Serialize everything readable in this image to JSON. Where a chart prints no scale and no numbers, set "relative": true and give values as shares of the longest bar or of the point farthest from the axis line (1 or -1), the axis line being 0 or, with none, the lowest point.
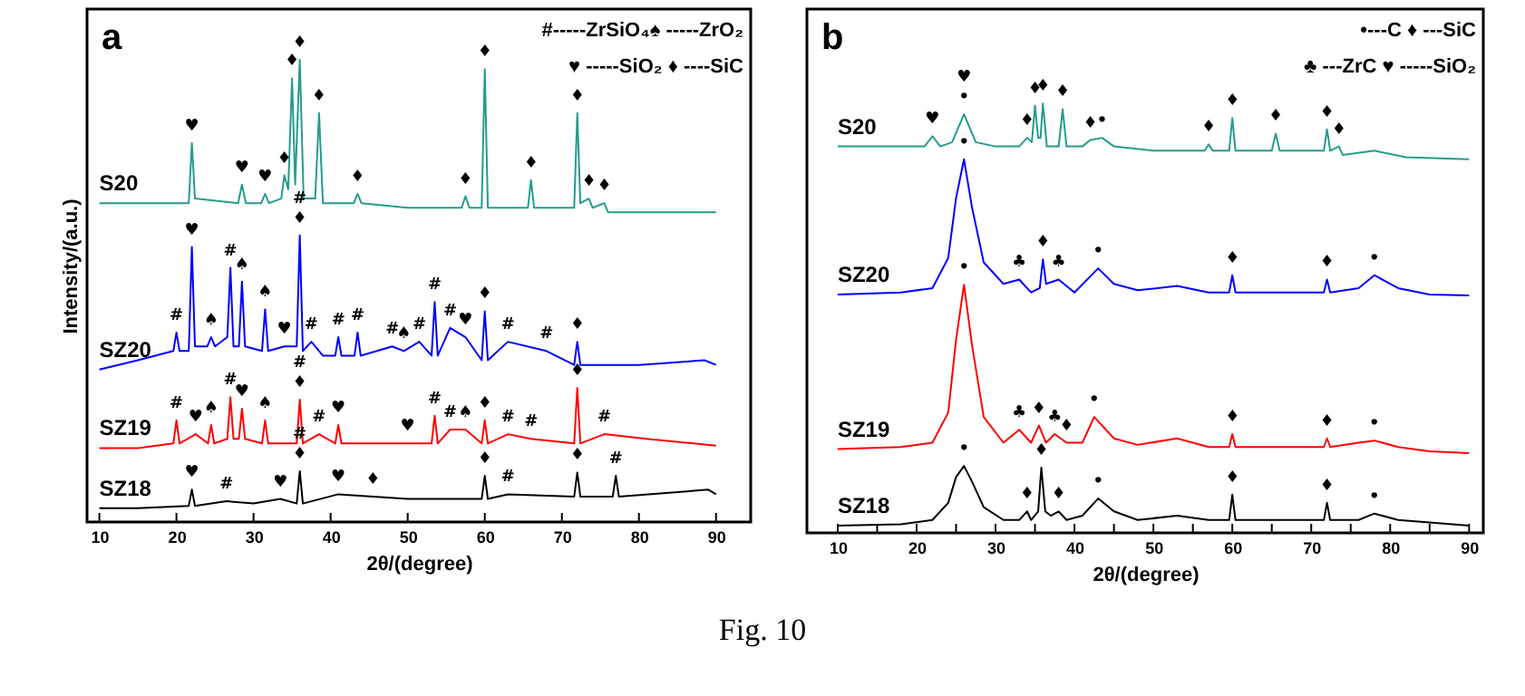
{
  "chart_data": [
    {
      "type": "line",
      "title": "a",
      "xlabel": "2θ/(degree)",
      "ylabel": "Intensity/(a.u.)",
      "relative": true,
      "xlim": [
        8.4,
        94.5
      ],
      "xticks": [
        10,
        20,
        30,
        40,
        50,
        60,
        70,
        80,
        90
      ],
      "series": [
        {
          "name": "S20",
          "color": "#259b8e",
          "x": [
            10,
            15,
            20,
            21.6,
            22,
            22.4,
            28,
            28.5,
            29,
            31,
            31.5,
            32,
            33.6,
            34,
            34.5,
            35,
            35.4,
            36,
            36.5,
            38,
            38.5,
            39,
            43,
            43.5,
            44,
            50,
            57,
            57.5,
            58,
            59.6,
            60,
            60.4,
            65.6,
            66,
            66.4,
            71.6,
            72,
            72.4,
            73.5,
            74,
            75.5,
            76,
            80,
            85,
            90
          ],
          "values": [
            0.69,
            0.69,
            0.69,
            0.69,
            0.82,
            0.7,
            0.69,
            0.73,
            0.69,
            0.69,
            0.71,
            0.69,
            0.7,
            0.75,
            0.72,
            0.96,
            0.73,
            1.0,
            0.7,
            0.7,
            0.885,
            0.69,
            0.69,
            0.71,
            0.69,
            0.68,
            0.68,
            0.705,
            0.68,
            0.68,
            0.98,
            0.68,
            0.68,
            0.74,
            0.68,
            0.68,
            0.885,
            0.69,
            0.7,
            0.68,
            0.69,
            0.67,
            0.67,
            0.67,
            0.67
          ]
        },
        {
          "name": "SZ20",
          "color": "#0000ff",
          "x": [
            10,
            15,
            19.6,
            20,
            20.4,
            21.6,
            22,
            22.4,
            24,
            24.5,
            25,
            26.6,
            27,
            27.4,
            28.1,
            28.5,
            28.9,
            31.1,
            31.5,
            31.9,
            34,
            35.6,
            36,
            36.4,
            37.5,
            39,
            40.6,
            41,
            41.4,
            43.1,
            43.5,
            43.9,
            48,
            49.5,
            51.5,
            53.1,
            53.5,
            53.9,
            55.5,
            57.5,
            59.6,
            60,
            60.4,
            63,
            68,
            71.6,
            72,
            72.4,
            80,
            88.5,
            90
          ],
          "values": [
            0.33,
            0.35,
            0.37,
            0.41,
            0.37,
            0.37,
            0.595,
            0.38,
            0.38,
            0.4,
            0.38,
            0.4,
            0.55,
            0.38,
            0.38,
            0.52,
            0.38,
            0.37,
            0.46,
            0.37,
            0.38,
            0.38,
            0.62,
            0.37,
            0.39,
            0.36,
            0.36,
            0.4,
            0.36,
            0.36,
            0.41,
            0.36,
            0.38,
            0.37,
            0.39,
            0.36,
            0.476,
            0.36,
            0.42,
            0.4,
            0.35,
            0.456,
            0.35,
            0.39,
            0.37,
            0.34,
            0.39,
            0.34,
            0.34,
            0.35,
            0.34
          ]
        },
        {
          "name": "SZ19",
          "color": "#ff0000",
          "x": [
            10,
            15,
            19.6,
            20,
            20.4,
            22.5,
            24.1,
            24.5,
            24.9,
            26.6,
            27,
            27.4,
            28.1,
            28.5,
            28.9,
            31.1,
            31.5,
            31.9,
            35.6,
            36,
            36.4,
            38.5,
            40.6,
            41,
            41.4,
            50,
            53.1,
            53.5,
            53.9,
            55.5,
            57.5,
            59.6,
            60,
            60.4,
            63,
            66,
            71.6,
            72,
            72.4,
            75.5,
            81,
            90
          ],
          "values": [
            0.16,
            0.16,
            0.17,
            0.22,
            0.17,
            0.19,
            0.17,
            0.21,
            0.17,
            0.18,
            0.27,
            0.18,
            0.18,
            0.245,
            0.18,
            0.17,
            0.22,
            0.17,
            0.17,
            0.265,
            0.17,
            0.19,
            0.17,
            0.21,
            0.17,
            0.17,
            0.17,
            0.23,
            0.17,
            0.2,
            0.2,
            0.17,
            0.22,
            0.17,
            0.19,
            0.18,
            0.17,
            0.29,
            0.17,
            0.19,
            0.18,
            0.165
          ]
        },
        {
          "name": "SZ18",
          "color": "#000000",
          "x": [
            10,
            15,
            21.6,
            22,
            22.4,
            26.5,
            30,
            33.5,
            35.6,
            36,
            36.4,
            41,
            45.5,
            50,
            59.6,
            60,
            60.4,
            63,
            71.6,
            72,
            72.4,
            76.6,
            77,
            77.4,
            89,
            90
          ],
          "values": [
            0.03,
            0.03,
            0.035,
            0.07,
            0.035,
            0.045,
            0.04,
            0.05,
            0.04,
            0.11,
            0.04,
            0.06,
            0.055,
            0.05,
            0.05,
            0.1,
            0.05,
            0.06,
            0.055,
            0.107,
            0.055,
            0.055,
            0.1,
            0.055,
            0.07,
            0.06
          ]
        }
      ],
      "annotations": [
        "#-----ZrSiO₄♠ -----ZrO₂",
        "♥ -----SiO₂  ♦ ----SiC",
        {
          "text": "♥",
          "x": 22,
          "y": 0.82
        },
        {
          "text": "♥",
          "x": 28.5,
          "y": 0.73
        },
        {
          "text": "♥",
          "x": 31.5,
          "y": 0.71
        },
        {
          "text": "♦",
          "x": 34,
          "y": 0.75
        },
        {
          "text": "♦",
          "x": 35,
          "y": 0.96
        },
        {
          "text": "♦",
          "x": 36,
          "y": 1.0
        },
        {
          "text": "♦",
          "x": 38.5,
          "y": 0.885
        },
        {
          "text": "♦",
          "x": 43.5,
          "y": 0.71
        },
        {
          "text": "♦",
          "x": 57.5,
          "y": 0.705
        },
        {
          "text": "♦",
          "x": 60,
          "y": 0.98
        },
        {
          "text": "♦",
          "x": 66,
          "y": 0.74
        },
        {
          "text": "♦",
          "x": 72,
          "y": 0.885
        },
        {
          "text": "♦",
          "x": 73.5,
          "y": 0.7
        },
        {
          "text": "♦",
          "x": 75.5,
          "y": 0.69
        },
        {
          "text": "#",
          "x": 20,
          "y": 0.41
        },
        {
          "text": "♥",
          "x": 22,
          "y": 0.595
        },
        {
          "text": "♠",
          "x": 24.5,
          "y": 0.4
        },
        {
          "text": "#",
          "x": 27,
          "y": 0.55
        },
        {
          "text": "♠",
          "x": 28.5,
          "y": 0.52
        },
        {
          "text": "♠",
          "x": 31.5,
          "y": 0.46
        },
        {
          "text": "♥",
          "x": 34,
          "y": 0.38
        },
        {
          "text": "♦",
          "x": 36,
          "y": 0.62
        },
        {
          "text": "#",
          "x": 36,
          "y": 0.62
        },
        {
          "text": "#",
          "x": 37.5,
          "y": 0.39
        },
        {
          "text": "#",
          "x": 41,
          "y": 0.4
        },
        {
          "text": "#",
          "x": 43.5,
          "y": 0.41
        },
        {
          "text": "#",
          "x": 48,
          "y": 0.38
        },
        {
          "text": "♠",
          "x": 49.5,
          "y": 0.37
        },
        {
          "text": "#",
          "x": 51.5,
          "y": 0.39
        },
        {
          "text": "#",
          "x": 53.5,
          "y": 0.476
        },
        {
          "text": "#",
          "x": 55.5,
          "y": 0.42
        },
        {
          "text": "♥",
          "x": 57.5,
          "y": 0.4
        },
        {
          "text": "♦",
          "x": 60,
          "y": 0.456
        },
        {
          "text": "#",
          "x": 63,
          "y": 0.39
        },
        {
          "text": "#",
          "x": 68,
          "y": 0.37
        },
        {
          "text": "♦",
          "x": 72,
          "y": 0.39
        },
        {
          "text": "#",
          "x": 20,
          "y": 0.22
        },
        {
          "text": "♥",
          "x": 22.5,
          "y": 0.19
        },
        {
          "text": "♠",
          "x": 24.5,
          "y": 0.21
        },
        {
          "text": "#",
          "x": 27,
          "y": 0.27
        },
        {
          "text": "♥",
          "x": 28.5,
          "y": 0.245
        },
        {
          "text": "♠",
          "x": 31.5,
          "y": 0.22
        },
        {
          "text": "♦",
          "x": 36,
          "y": 0.265
        },
        {
          "text": "#",
          "x": 36,
          "y": 0.265
        },
        {
          "text": "#",
          "x": 38.5,
          "y": 0.19
        },
        {
          "text": "♥",
          "x": 41,
          "y": 0.21
        },
        {
          "text": "♥",
          "x": 50,
          "y": 0.17
        },
        {
          "text": "#",
          "x": 53.5,
          "y": 0.23
        },
        {
          "text": "#",
          "x": 55.5,
          "y": 0.2
        },
        {
          "text": "♠",
          "x": 57.5,
          "y": 0.2
        },
        {
          "text": "♦",
          "x": 60,
          "y": 0.22
        },
        {
          "text": "#",
          "x": 63,
          "y": 0.19
        },
        {
          "text": "#",
          "x": 66,
          "y": 0.18
        },
        {
          "text": "♦",
          "x": 72,
          "y": 0.29
        },
        {
          "text": "#",
          "x": 75.5,
          "y": 0.19
        },
        {
          "text": "♥",
          "x": 22,
          "y": 0.07
        },
        {
          "text": "#",
          "x": 26.5,
          "y": 0.045
        },
        {
          "text": "♥",
          "x": 33.5,
          "y": 0.05
        },
        {
          "text": "♦",
          "x": 36,
          "y": 0.11
        },
        {
          "text": "#",
          "x": 36,
          "y": 0.11
        },
        {
          "text": "♥",
          "x": 41,
          "y": 0.06
        },
        {
          "text": "♦",
          "x": 45.5,
          "y": 0.055
        },
        {
          "text": "♦",
          "x": 60,
          "y": 0.1
        },
        {
          "text": "#",
          "x": 63,
          "y": 0.06
        },
        {
          "text": "♦",
          "x": 72,
          "y": 0.107
        },
        {
          "text": "#",
          "x": 77,
          "y": 0.1
        }
      ]
    },
    {
      "type": "line",
      "title": "b",
      "xlabel": "2θ/(degree)",
      "relative": true,
      "xlim": [
        6.1,
        91.8
      ],
      "xticks": [
        10,
        {
          "value": 15,
          "label": null
        },
        20,
        {
          "value": 25,
          "label": null
        },
        30,
        {
          "value": 35,
          "label": null
        },
        40,
        {
          "value": 45,
          "label": null
        },
        50,
        {
          "value": 55,
          "label": null
        },
        60,
        {
          "value": 65,
          "label": null
        },
        70,
        {
          "value": 75,
          "label": null
        },
        80,
        {
          "value": 85,
          "label": null
        },
        90
      ],
      "series": [
        {
          "name": "S20",
          "color": "#259b8e",
          "x": [
            10,
            18,
            21,
            22,
            23,
            24.5,
            26,
            27.5,
            30,
            33,
            34,
            34.6,
            35,
            35.4,
            35.7,
            36,
            36.5,
            38,
            38.5,
            39,
            41,
            42,
            43.5,
            45,
            50,
            56.5,
            57,
            57.5,
            59.6,
            60,
            60.4,
            65,
            65.5,
            66,
            71.6,
            72,
            72.4,
            73.5,
            74,
            78,
            82,
            90
          ],
          "values": [
            0.9,
            0.9,
            0.9,
            0.924,
            0.9,
            0.91,
            0.975,
            0.91,
            0.9,
            0.9,
            0.92,
            0.91,
            0.995,
            0.92,
            0.92,
            1.0,
            0.9,
            0.9,
            0.987,
            0.9,
            0.9,
            0.915,
            0.92,
            0.9,
            0.89,
            0.89,
            0.905,
            0.89,
            0.89,
            0.966,
            0.89,
            0.89,
            0.93,
            0.89,
            0.89,
            0.94,
            0.89,
            0.9,
            0.88,
            0.89,
            0.875,
            0.87
          ]
        },
        {
          "name": "SZ20",
          "color": "#0000ff",
          "x": [
            10,
            18,
            22,
            24,
            25,
            26,
            27,
            28.5,
            31,
            33,
            34.5,
            35.6,
            36,
            36.4,
            38,
            40,
            43,
            45,
            48,
            53,
            57,
            59.6,
            60,
            60.4,
            66,
            71.6,
            72,
            72.4,
            76,
            78,
            81,
            85,
            90
          ],
          "values": [
            0.555,
            0.56,
            0.57,
            0.64,
            0.78,
            0.87,
            0.76,
            0.63,
            0.58,
            0.59,
            0.56,
            0.57,
            0.637,
            0.58,
            0.59,
            0.56,
            0.616,
            0.58,
            0.565,
            0.575,
            0.56,
            0.56,
            0.6,
            0.56,
            0.56,
            0.56,
            0.59,
            0.56,
            0.57,
            0.6,
            0.57,
            0.555,
            0.553
          ]
        },
        {
          "name": "SZ19",
          "color": "#ff0000",
          "x": [
            10,
            18,
            22,
            24,
            25,
            26,
            27,
            28.5,
            31,
            33,
            34.5,
            35.5,
            36.4,
            37.5,
            39,
            41,
            42.5,
            45,
            48,
            53,
            57,
            59.6,
            60,
            60.4,
            66,
            71.6,
            72,
            72.4,
            76,
            78,
            81,
            85,
            90
          ],
          "values": [
            0.195,
            0.2,
            0.21,
            0.28,
            0.45,
            0.578,
            0.44,
            0.27,
            0.21,
            0.24,
            0.21,
            0.25,
            0.21,
            0.23,
            0.21,
            0.21,
            0.27,
            0.22,
            0.205,
            0.22,
            0.2,
            0.2,
            0.23,
            0.2,
            0.2,
            0.2,
            0.22,
            0.2,
            0.21,
            0.215,
            0.2,
            0.19,
            0.186
          ]
        },
        {
          "name": "SZ18",
          "color": "#000000",
          "x": [
            10,
            18,
            22,
            24,
            25,
            26,
            27,
            28.5,
            31,
            33,
            34,
            34.5,
            35.4,
            35.8,
            36.3,
            37,
            38,
            39,
            41,
            43,
            45,
            48,
            53,
            57,
            59.6,
            60,
            60.4,
            66,
            71.6,
            72,
            72.4,
            76,
            78,
            81,
            90
          ],
          "values": [
            0.017,
            0.02,
            0.03,
            0.07,
            0.13,
            0.156,
            0.12,
            0.06,
            0.03,
            0.03,
            0.05,
            0.03,
            0.05,
            0.152,
            0.05,
            0.04,
            0.05,
            0.03,
            0.04,
            0.08,
            0.05,
            0.03,
            0.04,
            0.03,
            0.03,
            0.089,
            0.03,
            0.03,
            0.03,
            0.07,
            0.03,
            0.03,
            0.045,
            0.03,
            0.017
          ]
        }
      ],
      "annotations": [
        "•---C      ♦ ---SiC",
        "♣ ---ZrC ♥ -----SiO₂",
        "Fig. 10",
        {
          "text": "♥",
          "x": 22,
          "y": 0.924
        },
        {
          "text": "•",
          "x": 26,
          "y": 0.975
        },
        {
          "text": "♥",
          "x": 26,
          "y": 0.975
        },
        {
          "text": "♦",
          "x": 34,
          "y": 0.92
        },
        {
          "text": "♦",
          "x": 35,
          "y": 0.995
        },
        {
          "text": "♦",
          "x": 36,
          "y": 1.0
        },
        {
          "text": "♦",
          "x": 38.5,
          "y": 0.987
        },
        {
          "text": "♦",
          "x": 42,
          "y": 0.915
        },
        {
          "text": "•",
          "x": 43.5,
          "y": 0.92
        },
        {
          "text": "♦",
          "x": 57,
          "y": 0.905
        },
        {
          "text": "♦",
          "x": 60,
          "y": 0.966
        },
        {
          "text": "♦",
          "x": 65.5,
          "y": 0.93
        },
        {
          "text": "♦",
          "x": 72,
          "y": 0.94
        },
        {
          "text": "♦",
          "x": 73.5,
          "y": 0.9
        },
        {
          "text": "•",
          "x": 26,
          "y": 0.87
        },
        {
          "text": "♣",
          "x": 33,
          "y": 0.59
        },
        {
          "text": "♦",
          "x": 36,
          "y": 0.637
        },
        {
          "text": "♣",
          "x": 38,
          "y": 0.59
        },
        {
          "text": "•",
          "x": 43,
          "y": 0.616
        },
        {
          "text": "♦",
          "x": 60,
          "y": 0.6
        },
        {
          "text": "♦",
          "x": 72,
          "y": 0.59
        },
        {
          "text": "•",
          "x": 78,
          "y": 0.6
        },
        {
          "text": "•",
          "x": 26,
          "y": 0.578
        },
        {
          "text": "♣",
          "x": 33,
          "y": 0.24
        },
        {
          "text": "♦",
          "x": 35.5,
          "y": 0.25
        },
        {
          "text": "♣",
          "x": 37.5,
          "y": 0.23
        },
        {
          "text": "♦",
          "x": 39,
          "y": 0.21
        },
        {
          "text": "•",
          "x": 42.5,
          "y": 0.27
        },
        {
          "text": "♦",
          "x": 60,
          "y": 0.23
        },
        {
          "text": "♦",
          "x": 72,
          "y": 0.22
        },
        {
          "text": "•",
          "x": 78,
          "y": 0.215
        },
        {
          "text": "•",
          "x": 26,
          "y": 0.156
        },
        {
          "text": "♦",
          "x": 34,
          "y": 0.05
        },
        {
          "text": "♦",
          "x": 35.8,
          "y": 0.152
        },
        {
          "text": "♦",
          "x": 38,
          "y": 0.05
        },
        {
          "text": "•",
          "x": 43,
          "y": 0.08
        },
        {
          "text": "♦",
          "x": 60,
          "y": 0.089
        },
        {
          "text": "♦",
          "x": 72,
          "y": 0.07
        },
        {
          "text": "•",
          "x": 78,
          "y": 0.045
        }
      ]
    }
  ]
}
